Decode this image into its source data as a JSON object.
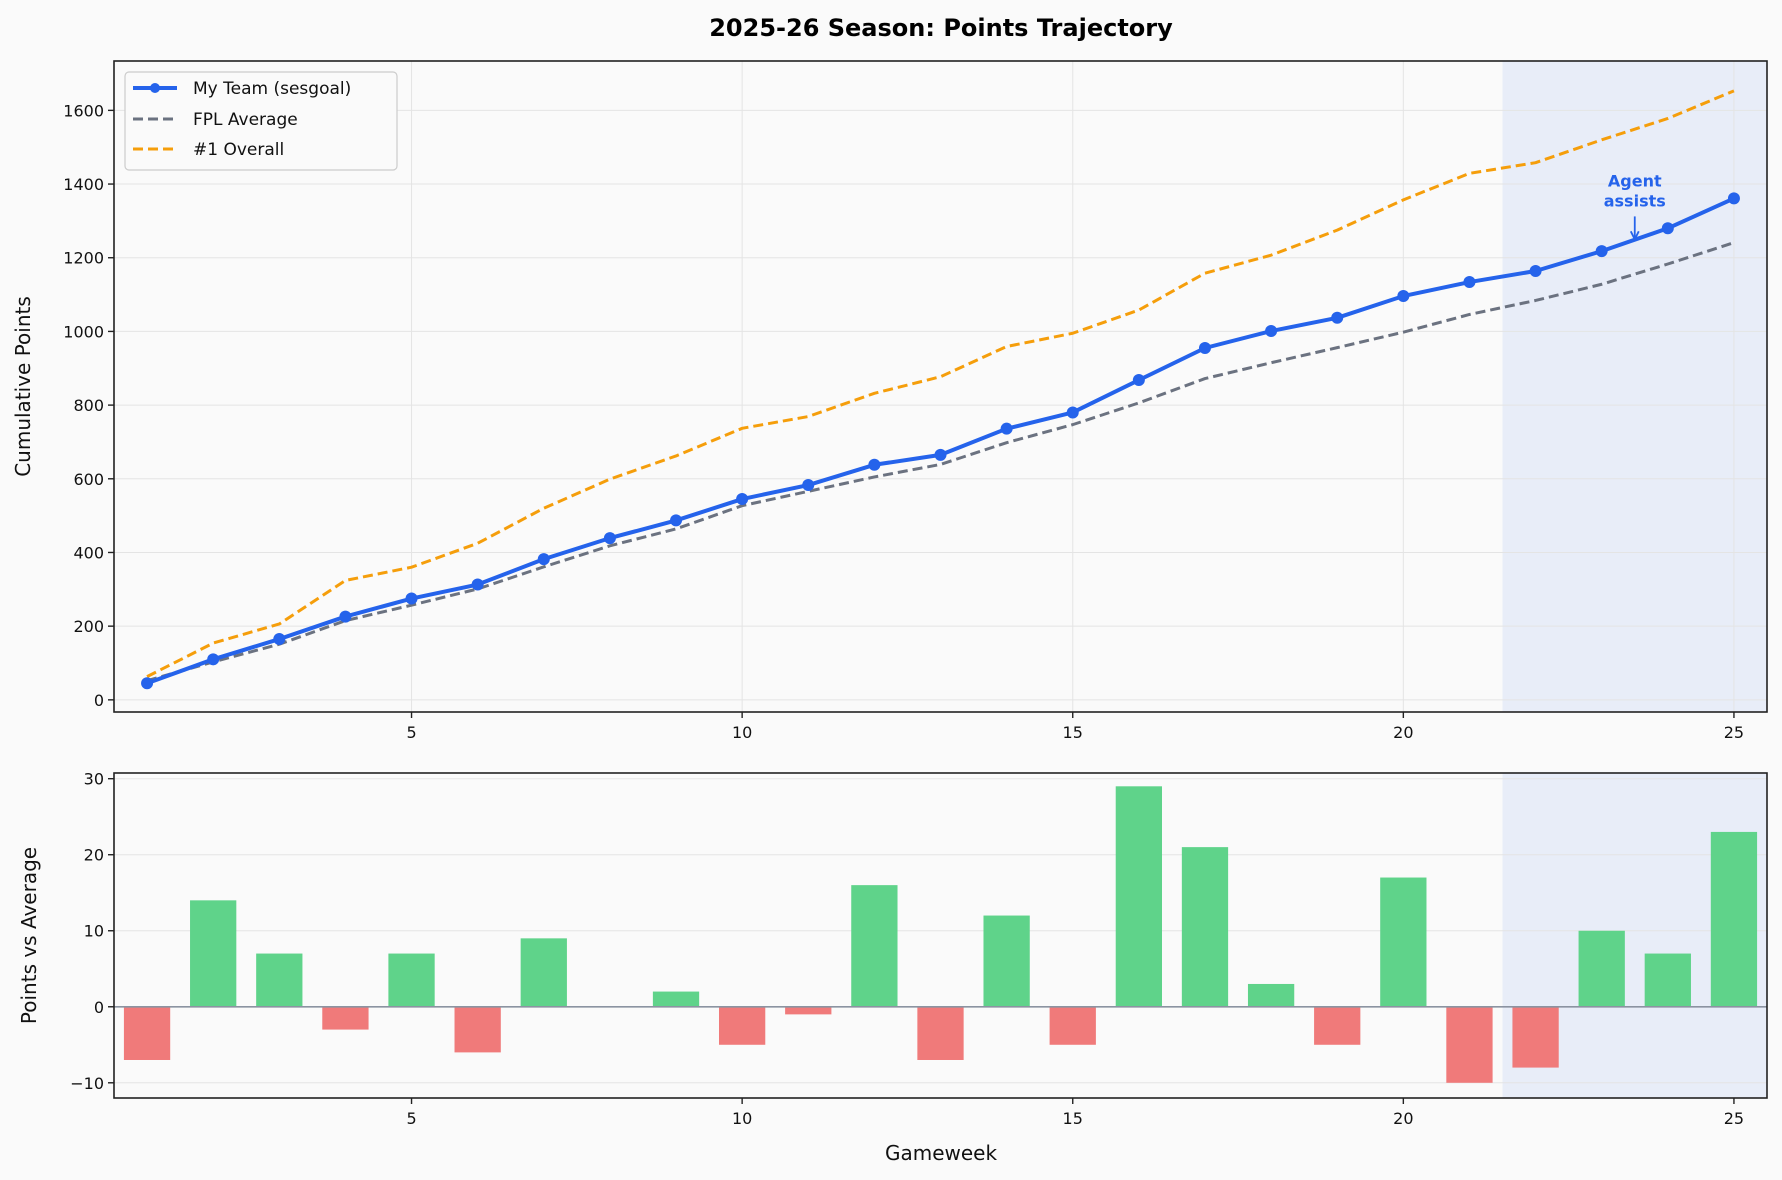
{
  "figure": {
    "title": "2025-26 Season: Points Trajectory",
    "background": "#fafafa"
  },
  "colors": {
    "my_team": "#2563eb",
    "fpl_average": "#6b7280",
    "top_overall": "#f59e0b",
    "positive_bar": "#5fd38a",
    "negative_bar": "#f07a7a",
    "shade": "#e8edf8",
    "grid": "#e4e4e4",
    "zero_line": "#8b93a1"
  },
  "chart_data": [
    {
      "type": "line",
      "title": "2025-26 Season: Points Trajectory",
      "xlabel": "",
      "ylabel": "Cumulative Points",
      "x": [
        1,
        2,
        3,
        4,
        5,
        6,
        7,
        8,
        9,
        10,
        11,
        12,
        13,
        14,
        15,
        16,
        17,
        18,
        19,
        20,
        21,
        22,
        23,
        24,
        25
      ],
      "xticks": [
        5,
        10,
        15,
        20,
        25
      ],
      "yticks": [
        0,
        200,
        400,
        600,
        800,
        1000,
        1200,
        1400,
        1600
      ],
      "xlim": [
        0.5,
        25.5
      ],
      "ylim": [
        -33,
        1734
      ],
      "grid": true,
      "legend_position": "upper left",
      "series": [
        {
          "name": "My Team (sesgoal)",
          "style": "solid-markers",
          "values": [
            45,
            110,
            165,
            226,
            275,
            313,
            382,
            439,
            487,
            545,
            583,
            638,
            665,
            736,
            780,
            868,
            955,
            1001,
            1037,
            1096,
            1134,
            1164,
            1218,
            1280,
            1361
          ]
        },
        {
          "name": "FPL Average",
          "style": "dashed",
          "values": [
            52,
            103,
            151,
            215,
            257,
            301,
            361,
            418,
            464,
            527,
            566,
            605,
            639,
            698,
            747,
            806,
            872,
            915,
            956,
            998,
            1046,
            1084,
            1128,
            1183,
            1241
          ]
        },
        {
          "name": "#1 Overall",
          "style": "dashed",
          "values": [
            63,
            154,
            206,
            324,
            360,
            425,
            520,
            599,
            662,
            737,
            769,
            832,
            877,
            959,
            995,
            1058,
            1158,
            1207,
            1275,
            1357,
            1429,
            1458,
            1520,
            1578,
            1653
          ]
        }
      ],
      "shaded_region": {
        "x_start": 21.5,
        "x_end": 25.5
      },
      "annotations": [
        {
          "text_line1": "Agent",
          "text_line2": "assists",
          "x": 23.5,
          "y_text": 1380,
          "arrow_to_y": 1250
        }
      ]
    },
    {
      "type": "bar",
      "title": "",
      "xlabel": "Gameweek",
      "ylabel": "Points vs Average",
      "categories": [
        1,
        2,
        3,
        4,
        5,
        6,
        7,
        8,
        9,
        10,
        11,
        12,
        13,
        14,
        15,
        16,
        17,
        18,
        19,
        20,
        21,
        22,
        23,
        24,
        25
      ],
      "values": [
        -7,
        14,
        7,
        -3,
        7,
        -6,
        9,
        0,
        2,
        -5,
        -1,
        16,
        -7,
        12,
        -5,
        29,
        21,
        3,
        -5,
        17,
        -10,
        -8,
        10,
        7,
        23
      ],
      "xticks": [
        5,
        10,
        15,
        20,
        25
      ],
      "yticks": [
        -10,
        0,
        10,
        20,
        30
      ],
      "xlim": [
        0.5,
        25.5
      ],
      "ylim": [
        -12,
        30.75
      ],
      "grid": true,
      "shaded_region": {
        "x_start": 21.5,
        "x_end": 25.5
      }
    }
  ],
  "legend": {
    "items": [
      {
        "label": "My Team (sesgoal)"
      },
      {
        "label": "FPL Average"
      },
      {
        "label": "#1 Overall"
      }
    ]
  },
  "axes": {
    "top_ylabel": "Cumulative Points",
    "bottom_ylabel": "Points vs Average",
    "bottom_xlabel": "Gameweek"
  },
  "annotation": {
    "line1": "Agent",
    "line2": "assists"
  }
}
